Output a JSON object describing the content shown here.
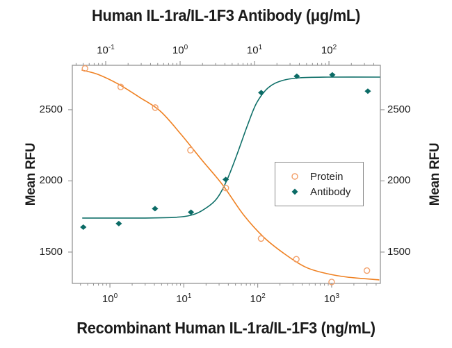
{
  "figure": {
    "top_title": "Human IL-1ra/IL-1F3 Antibody (μg/mL)",
    "bottom_title": "Recombinant Human IL-1ra/IL-1F3 (ng/mL)",
    "left_axis_label": "Mean RFU",
    "right_axis_label": "Mean RFU"
  },
  "legend": {
    "items": [
      {
        "label": "Protein",
        "marker": "open-circle",
        "color": "#F2A06A"
      },
      {
        "label": "Antibody",
        "marker": "filled-diamond",
        "color": "#0B6B66"
      }
    ]
  },
  "chart_data": {
    "type": "line",
    "grid": false,
    "legend_position": "middle-right",
    "axes": {
      "bottom": {
        "scale": "log",
        "range": [
          0.31,
          4565
        ],
        "ticks": [
          1,
          10,
          100,
          1000
        ],
        "label": "Recombinant Human IL-1ra/IL-1F3 (ng/mL)",
        "units": "ng/mL"
      },
      "top": {
        "scale": "log",
        "range": [
          0.0356,
          491
        ],
        "ticks": [
          0.1,
          1,
          10,
          100
        ],
        "label": "Human IL-1ra/IL-1F3 Antibody (μg/mL)",
        "units": "μg/mL"
      },
      "y": {
        "scale": "linear",
        "range": [
          1280,
          2812
        ],
        "ticks": [
          1500,
          2000,
          2500
        ],
        "label": "Mean RFU"
      }
    },
    "series": [
      {
        "name": "Protein",
        "axis": "bottom",
        "marker": "open-circle",
        "marker_color": "#F2A06A",
        "line_color": "#EF8122",
        "x": [
          0.46,
          1.4,
          4.1,
          12.3,
          37,
          111,
          333,
          1000,
          3000
        ],
        "y": [
          2790,
          2660,
          2515,
          2215,
          1950,
          1595,
          1450,
          1290,
          1370
        ],
        "curve_x": [
          0.42,
          0.68,
          1.3,
          2.5,
          4.8,
          9.1,
          17.4,
          33.4,
          64,
          122,
          234,
          449,
          859,
          1645,
          4365
        ],
        "curve_y": [
          2778,
          2749,
          2680,
          2588,
          2490,
          2329,
          2149,
          1973,
          1763,
          1602,
          1485,
          1393,
          1349,
          1324,
          1305
        ]
      },
      {
        "name": "Antibody",
        "axis": "top",
        "marker": "filled-diamond",
        "marker_color": "#0B6B66",
        "line_color": "#0E6F68",
        "x": [
          0.05,
          0.15,
          0.46,
          1.4,
          4.1,
          12.3,
          37,
          111,
          333
        ],
        "y": [
          1675,
          1700,
          1805,
          1780,
          2010,
          2620,
          2735,
          2745,
          2630
        ],
        "curve_x": [
          0.049,
          0.287,
          0.842,
          1.38,
          1.99,
          3.06,
          4.23,
          5.84,
          8.07,
          10.7,
          15.4,
          23.7,
          40.5,
          95.7,
          481
        ],
        "curve_y": [
          1739,
          1739,
          1744,
          1758,
          1793,
          1871,
          2002,
          2188,
          2393,
          2549,
          2656,
          2705,
          2724,
          2729,
          2729
        ]
      }
    ]
  },
  "colors": {
    "frame": "#8C8C8C",
    "tick": "#8C8C8C",
    "text": "#1B1B1B",
    "background": "#FFFFFF"
  }
}
